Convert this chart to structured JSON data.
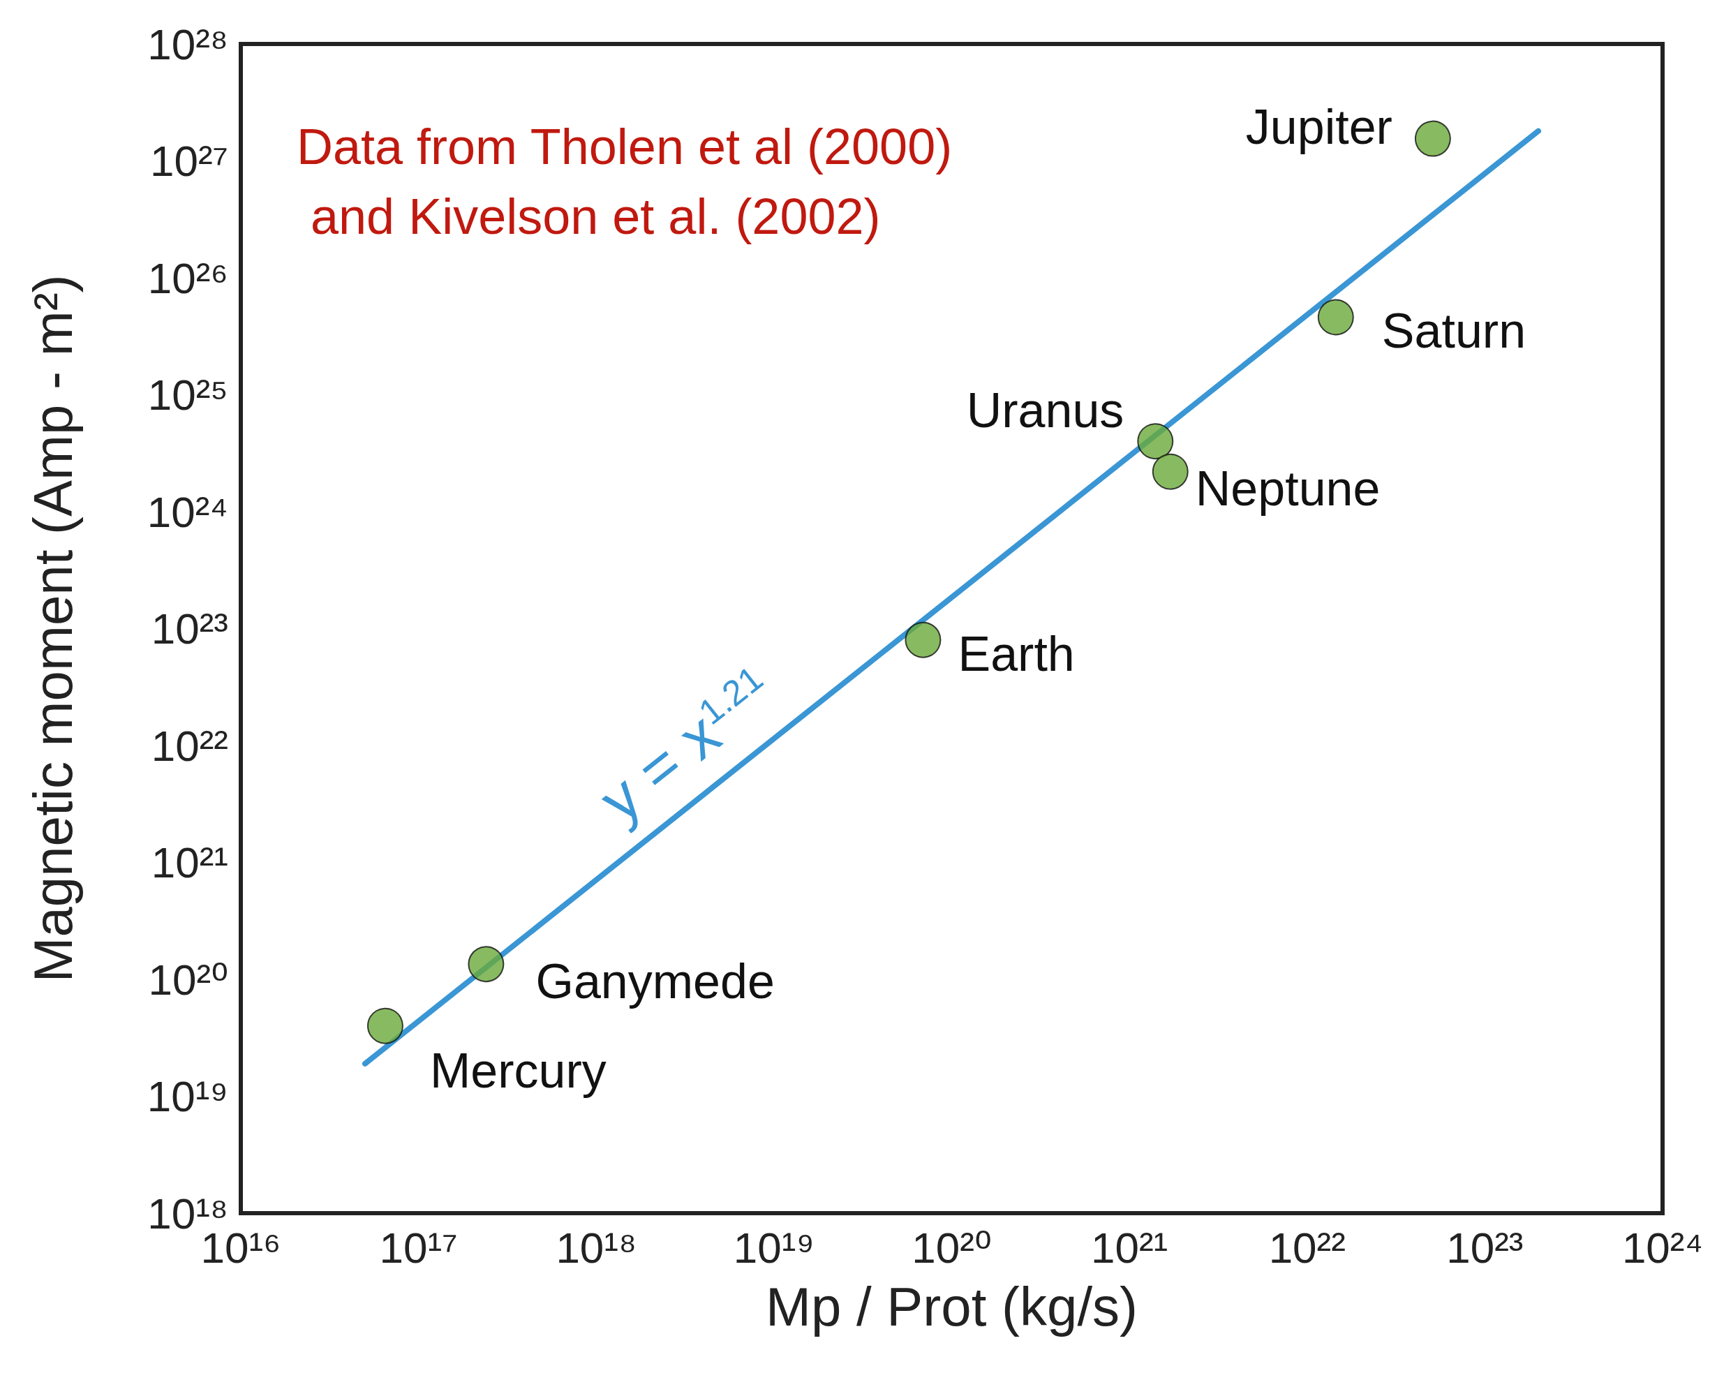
{
  "chart_data": {
    "type": "scatter",
    "xlabel": "Mp / Prot (kg/s)",
    "ylabel": "Magnetic moment (Amp - m²)",
    "log": "xy",
    "grid": false,
    "marker": "circle",
    "xlim": [
      1e+16,
      1e+24
    ],
    "ylim": [
      1e+18,
      1e+28
    ],
    "xticks": [
      {
        "value": 1e+16,
        "label": "10¹⁶"
      },
      {
        "value": 1e+17,
        "label": "10¹⁷"
      },
      {
        "value": 1e+18,
        "label": "10¹⁸"
      },
      {
        "value": 1e+19,
        "label": "10¹⁹"
      },
      {
        "value": 1e+20,
        "label": "10²⁰"
      },
      {
        "value": 1e+21,
        "label": "10²¹"
      },
      {
        "value": 1e+22,
        "label": "10²²"
      },
      {
        "value": 1e+23,
        "label": "10²³"
      },
      {
        "value": 1e+24,
        "label": "10²⁴"
      }
    ],
    "yticks": [
      {
        "value": 1e+18,
        "label": "10¹⁸"
      },
      {
        "value": 1e+19,
        "label": "10¹⁹"
      },
      {
        "value": 1e+20,
        "label": "10²⁰"
      },
      {
        "value": 1e+21,
        "label": "10²¹"
      },
      {
        "value": 1e+22,
        "label": "10²²"
      },
      {
        "value": 1e+23,
        "label": "10²³"
      },
      {
        "value": 1e+24,
        "label": "10²⁴"
      },
      {
        "value": 1e+25,
        "label": "10²⁵"
      },
      {
        "value": 1e+26,
        "label": "10²⁶"
      },
      {
        "value": 1e+27,
        "label": "10²⁷"
      },
      {
        "value": 1e+28,
        "label": "10²⁸"
      }
    ],
    "series": [
      {
        "type": "line",
        "color": "#3a96d4",
        "line_style": "solid",
        "marker": "none",
        "x": [
          5e+16,
          2e+23
        ],
        "values": [
          1.9e+19,
          1.8e+27
        ]
      },
      {
        "color": "#6aaa3a",
        "x": [
          6.5e+16,
          2.4e+17,
          6.9e+19,
          1.4e+21,
          1.7e+21,
          1.45e+22,
          5.1e+22
        ],
        "values": [
          4e+19,
          1.35e+20,
          8e+22,
          4e+24,
          2.2e+24,
          4.6e+25,
          1.55e+27
        ]
      }
    ],
    "annotations": [
      "Data from Tholen et al (2000) and Kivelson et al. (2002)",
      {
        "text": "Mercury",
        "x": 6.5e+16,
        "y": 4e+19
      },
      {
        "text": "Ganymede",
        "x": 2.4e+17,
        "y": 1.35e+20
      },
      {
        "text": "Earth",
        "x": 6.9e+19,
        "y": 8e+22
      },
      {
        "text": "Uranus",
        "x": 1.4e+21,
        "y": 4e+24
      },
      {
        "text": "Neptune",
        "x": 1.7e+21,
        "y": 2.2e+24
      },
      {
        "text": "Saturn",
        "x": 1.45e+22,
        "y": 4.6e+25
      },
      {
        "text": "Jupiter",
        "x": 5.1e+22,
        "y": 1.55e+27
      },
      "y = x$^{1.21}$"
    ]
  }
}
